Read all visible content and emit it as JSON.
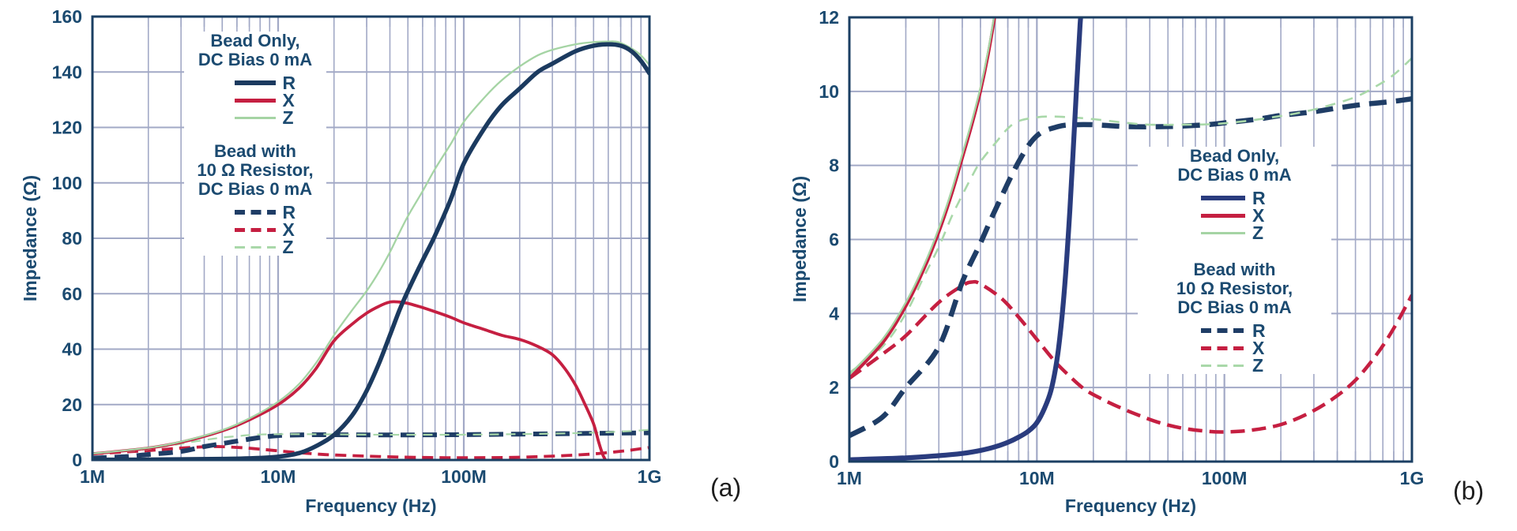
{
  "page": {
    "background_color": "#ffffff"
  },
  "chart_data": [
    {
      "type": "line",
      "panel": "a",
      "caption": "(a)",
      "xlabel": "Frequency (Hz)",
      "ylabel": "Impedance (Ω)",
      "x_scale": "log",
      "x_ticks": [
        "1M",
        "10M",
        "100M",
        "1G"
      ],
      "ylim": [
        0,
        160
      ],
      "y_ticks": [
        0,
        20,
        40,
        60,
        80,
        100,
        120,
        140,
        160
      ],
      "grid": "major-and-minor-log",
      "legend_position": "upper-left-inside",
      "colors": {
        "axis": "#1b3f63",
        "grid": "#a2a9c6",
        "text": "#1b4a70",
        "caption": "#1e1e1e"
      },
      "legend": {
        "group1": {
          "line1": "Bead Only,",
          "line2": "DC Bias 0 mA",
          "items": [
            {
              "label": "R",
              "series": "bead_r"
            },
            {
              "label": "X",
              "series": "bead_x"
            },
            {
              "label": "Z",
              "series": "bead_z"
            }
          ]
        },
        "group2": {
          "line1": "Bead with",
          "line2": "10 Ω Resistor,",
          "line3": "DC Bias 0 mA",
          "items": [
            {
              "label": "R",
              "series": "bead_res_r"
            },
            {
              "label": "X",
              "series": "bead_res_x"
            },
            {
              "label": "Z",
              "series": "bead_res_z"
            }
          ]
        }
      },
      "series": [
        {
          "key": "bead_res_x",
          "name": "Bead with 10 Ω Resistor, DC Bias 0 mA — X",
          "style": "dashed",
          "color": "#c51f41",
          "width": 3.8,
          "dash": [
            14,
            8
          ],
          "x_mhz": [
            1,
            1.5,
            2,
            3,
            4,
            4.5,
            5,
            6.5,
            8,
            10,
            12.5,
            15,
            18,
            22,
            28,
            35,
            45,
            60,
            80,
            100,
            140,
            200,
            280,
            380,
            500,
            650,
            800,
            1000
          ],
          "y_ohm": [
            2.25,
            2.9,
            3.4,
            4.3,
            4.75,
            4.85,
            4.8,
            4.4,
            3.9,
            3.3,
            2.7,
            2.3,
            1.95,
            1.7,
            1.45,
            1.25,
            1.05,
            0.9,
            0.82,
            0.8,
            0.85,
            1.0,
            1.3,
            1.7,
            2.2,
            2.9,
            3.6,
            4.5
          ]
        },
        {
          "key": "bead_res_r",
          "name": "Bead with 10 Ω Resistor, DC Bias 0 mA — R",
          "style": "dashed",
          "color": "#1f3d66",
          "width": 6,
          "dash": [
            18,
            10
          ],
          "x_mhz": [
            1,
            1.5,
            2,
            3,
            4,
            5,
            6,
            8,
            10,
            13,
            16,
            20,
            30,
            50,
            80,
            100,
            150,
            200,
            300,
            400,
            550,
            700,
            850,
            1000
          ],
          "y_ohm": [
            0.7,
            1.2,
            2.0,
            3.1,
            4.85,
            5.9,
            6.8,
            8.1,
            8.8,
            9.05,
            9.1,
            9.1,
            9.05,
            9.05,
            9.1,
            9.15,
            9.25,
            9.35,
            9.45,
            9.55,
            9.65,
            9.7,
            9.75,
            9.8
          ]
        },
        {
          "key": "bead_res_z",
          "name": "Bead with 10 Ω Resistor, DC Bias 0 mA — Z",
          "style": "dashed",
          "color": "#a9d8a9",
          "width": 2.2,
          "dash": [
            12,
            9
          ],
          "x_mhz": [
            1,
            1.5,
            2,
            2.5,
            3,
            3.5,
            4,
            4.5,
            5,
            6,
            7,
            8,
            10,
            12,
            15,
            20,
            30,
            40,
            60,
            90,
            130,
            180,
            250,
            350,
            500,
            650,
            800,
            1000
          ],
          "y_ohm": [
            2.4,
            3.1,
            4.0,
            5.0,
            5.8,
            6.6,
            7.2,
            7.7,
            8.1,
            8.6,
            9.0,
            9.2,
            9.3,
            9.32,
            9.3,
            9.25,
            9.15,
            9.1,
            9.1,
            9.12,
            9.2,
            9.3,
            9.42,
            9.6,
            9.85,
            10.15,
            10.45,
            10.9
          ]
        },
        {
          "key": "bead_x",
          "name": "Bead Only, DC Bias 0 mA — X",
          "style": "solid",
          "color": "#c51f41",
          "width": 3.8,
          "dash": null,
          "x_mhz": [
            1,
            2,
            3,
            5,
            7,
            10,
            13,
            16,
            20,
            25,
            30,
            35,
            40,
            45,
            50,
            60,
            70,
            85,
            100,
            130,
            160,
            200,
            250,
            300,
            350,
            400,
            450,
            500,
            530,
            560,
            580
          ],
          "y_ohm": [
            2.2,
            4.3,
            6.4,
            10.5,
            14.5,
            20,
            26,
            33,
            43,
            49,
            53,
            55.5,
            57,
            57,
            56.5,
            55,
            53.5,
            51.5,
            49.5,
            47,
            45,
            43.5,
            41,
            38,
            33,
            27,
            20,
            13,
            7,
            2,
            0
          ]
        },
        {
          "key": "bead_z",
          "name": "Bead Only, DC Bias 0 mA — Z",
          "style": "solid",
          "color": "#a5d4a4",
          "width": 2.3,
          "dash": null,
          "x_mhz": [
            1,
            2,
            3,
            5,
            7,
            10,
            13,
            16,
            20,
            25,
            30,
            35,
            40,
            45,
            50,
            60,
            70,
            85,
            100,
            130,
            160,
            200,
            250,
            300,
            400,
            500,
            600,
            650,
            700,
            800,
            900,
            1000
          ],
          "y_ohm": [
            2.3,
            4.4,
            6.6,
            10.8,
            15,
            21,
            27.5,
            35,
            45,
            54,
            61,
            68,
            75,
            82,
            88,
            97,
            105,
            114,
            122,
            131,
            137,
            142,
            146,
            148,
            150,
            150.8,
            151,
            151,
            150.5,
            148.5,
            146,
            142.5
          ]
        },
        {
          "key": "bead_r",
          "name": "Bead Only, DC Bias 0 mA — R",
          "style": "solid",
          "color": "#1b3a5f",
          "width": 5.5,
          "dash": null,
          "x_mhz": [
            1,
            2,
            3,
            5,
            7,
            10,
            13,
            16,
            20,
            25,
            30,
            35,
            40,
            45,
            50,
            60,
            70,
            85,
            100,
            130,
            160,
            200,
            250,
            300,
            400,
            500,
            600,
            700,
            800,
            900,
            1000
          ],
          "y_ohm": [
            0.1,
            0.15,
            0.25,
            0.4,
            0.6,
            1.2,
            2.5,
            5,
            9,
            16,
            25,
            35,
            45,
            54,
            61,
            72,
            81,
            94,
            107,
            120,
            128,
            134,
            140,
            143,
            147.5,
            149.5,
            150,
            149.5,
            147.5,
            144,
            139.5
          ]
        }
      ]
    },
    {
      "type": "line",
      "panel": "b",
      "caption": "(b)",
      "xlabel": "Frequency (Hz)",
      "ylabel": "Impedance (Ω)",
      "x_scale": "log",
      "x_ticks": [
        "1M",
        "10M",
        "100M",
        "1G"
      ],
      "ylim": [
        0,
        12
      ],
      "y_ticks": [
        0,
        2,
        4,
        6,
        8,
        10,
        12
      ],
      "grid": "major-and-minor-log",
      "legend_position": "center-right-inside",
      "colors": {
        "axis": "#1b3f63",
        "grid": "#a2a9c6",
        "text": "#1b4a70",
        "caption": "#1e1e1e"
      },
      "legend": {
        "group1": {
          "line1": "Bead Only,",
          "line2": "DC Bias 0 mA",
          "items": [
            {
              "label": "R",
              "series": "bead_r"
            },
            {
              "label": "X",
              "series": "bead_x"
            },
            {
              "label": "Z",
              "series": "bead_z"
            }
          ]
        },
        "group2": {
          "line1": "Bead with",
          "line2": "10 Ω Resistor,",
          "line3": "DC Bias 0 mA",
          "items": [
            {
              "label": "R",
              "series": "bead_res_r"
            },
            {
              "label": "X",
              "series": "bead_res_x"
            },
            {
              "label": "Z",
              "series": "bead_res_z"
            }
          ]
        }
      },
      "series": [
        {
          "key": "bead_res_x",
          "name": "Bead with 10 Ω Resistor, DC Bias 0 mA — X",
          "style": "dashed",
          "color": "#c51f41",
          "width": 4.5,
          "dash": [
            18,
            9
          ],
          "x_mhz": [
            1,
            1.5,
            2,
            3,
            4,
            4.5,
            5,
            6.5,
            8,
            10,
            12.5,
            15,
            18,
            22,
            28,
            35,
            45,
            60,
            80,
            100,
            140,
            200,
            280,
            380,
            500,
            650,
            800,
            1000
          ],
          "y_ohm": [
            2.25,
            2.9,
            3.4,
            4.3,
            4.75,
            4.85,
            4.8,
            4.4,
            3.9,
            3.3,
            2.7,
            2.3,
            1.95,
            1.7,
            1.45,
            1.25,
            1.05,
            0.9,
            0.82,
            0.8,
            0.85,
            1.0,
            1.3,
            1.7,
            2.2,
            2.9,
            3.6,
            4.5
          ]
        },
        {
          "key": "bead_res_r",
          "name": "Bead with 10 Ω Resistor, DC Bias 0 mA — R",
          "style": "dashed",
          "color": "#1f3d66",
          "width": 6.5,
          "dash": [
            22,
            12
          ],
          "x_mhz": [
            1,
            1.5,
            2,
            3,
            4,
            5,
            6,
            8,
            10,
            13,
            16,
            20,
            30,
            50,
            80,
            100,
            150,
            200,
            300,
            400,
            550,
            700,
            850,
            1000
          ],
          "y_ohm": [
            0.7,
            1.2,
            2.0,
            3.1,
            4.85,
            5.9,
            6.8,
            8.1,
            8.8,
            9.05,
            9.1,
            9.1,
            9.05,
            9.05,
            9.1,
            9.15,
            9.25,
            9.35,
            9.45,
            9.55,
            9.65,
            9.7,
            9.75,
            9.8
          ]
        },
        {
          "key": "bead_res_z",
          "name": "Bead with 10 Ω Resistor, DC Bias 0 mA — Z",
          "style": "dashed",
          "color": "#a9d8a9",
          "width": 2.6,
          "dash": [
            13,
            10
          ],
          "x_mhz": [
            1,
            1.5,
            2,
            2.5,
            3,
            3.5,
            4,
            4.5,
            5,
            6,
            7,
            8,
            10,
            12,
            15,
            20,
            30,
            40,
            60,
            90,
            130,
            180,
            250,
            350,
            500,
            650,
            800,
            1000
          ],
          "y_ohm": [
            2.4,
            3.1,
            4.0,
            5.0,
            5.8,
            6.6,
            7.2,
            7.7,
            8.1,
            8.6,
            9.0,
            9.2,
            9.3,
            9.32,
            9.3,
            9.25,
            9.15,
            9.1,
            9.1,
            9.12,
            9.2,
            9.3,
            9.42,
            9.6,
            9.85,
            10.15,
            10.45,
            10.9
          ]
        },
        {
          "key": "bead_x",
          "name": "Bead Only, DC Bias 0 mA — X",
          "style": "solid",
          "color": "#c51f41",
          "width": 4,
          "dash": null,
          "x_mhz": [
            1,
            1.5,
            2,
            2.5,
            3,
            3.5,
            4,
            4.5,
            5,
            5.5,
            6
          ],
          "y_ohm": [
            2.25,
            3.2,
            4.2,
            5.2,
            6.2,
            7.2,
            8.2,
            9.1,
            10.0,
            11.0,
            12.1
          ]
        },
        {
          "key": "bead_z",
          "name": "Bead Only, DC Bias 0 mA — Z",
          "style": "solid",
          "color": "#a5d4a4",
          "width": 2.4,
          "dash": null,
          "x_mhz": [
            1,
            1.5,
            2,
            2.5,
            3,
            3.5,
            4,
            4.5,
            5,
            5.5,
            6
          ],
          "y_ohm": [
            2.35,
            3.3,
            4.3,
            5.3,
            6.3,
            7.3,
            8.3,
            9.2,
            10.1,
            11.1,
            12.2
          ]
        },
        {
          "key": "bead_r",
          "name": "Bead Only, DC Bias 0 mA — R",
          "style": "solid",
          "color": "#2a3c7e",
          "width": 6.2,
          "dash": null,
          "x_mhz": [
            1,
            2,
            3,
            4,
            5,
            6,
            7,
            8,
            9,
            10,
            11,
            12,
            13,
            14,
            15,
            16,
            17,
            17.6
          ],
          "y_ohm": [
            0.05,
            0.1,
            0.16,
            0.22,
            0.3,
            0.4,
            0.52,
            0.66,
            0.82,
            1.05,
            1.45,
            2.0,
            3.0,
            4.6,
            6.8,
            9.4,
            11.8,
            12.6
          ]
        }
      ]
    }
  ]
}
